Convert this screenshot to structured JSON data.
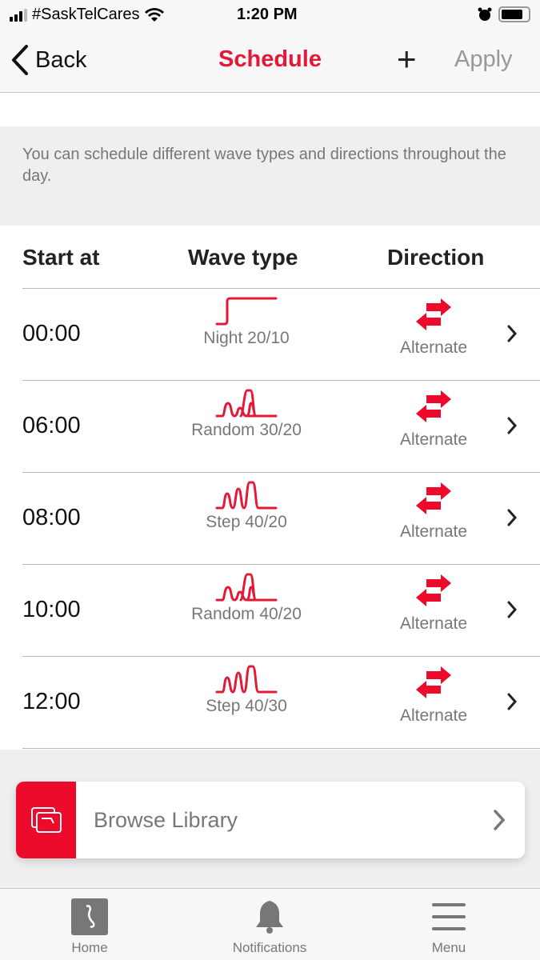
{
  "status_bar": {
    "carrier": "#SaskTelCares",
    "time": "1:20 PM"
  },
  "nav": {
    "back_label": "Back",
    "title": "Schedule",
    "add_label": "+",
    "apply_label": "Apply"
  },
  "info_text": "You can schedule different wave types and directions throughout the day.",
  "table": {
    "headers": [
      "Start at",
      "Wave type",
      "Direction"
    ],
    "rows": [
      {
        "start": "00:00",
        "wave": "Night 20/10",
        "wave_icon": "night-wave-icon",
        "direction": "Alternate"
      },
      {
        "start": "06:00",
        "wave": "Random 30/20",
        "wave_icon": "random-wave-icon",
        "direction": "Alternate"
      },
      {
        "start": "08:00",
        "wave": "Step 40/20",
        "wave_icon": "step-wave-icon",
        "direction": "Alternate"
      },
      {
        "start": "10:00",
        "wave": "Random 40/20",
        "wave_icon": "random-wave-icon",
        "direction": "Alternate"
      },
      {
        "start": "12:00",
        "wave": "Step 40/30",
        "wave_icon": "step-wave-icon",
        "direction": "Alternate"
      }
    ]
  },
  "browse_library": {
    "label": "Browse Library"
  },
  "tabbar": {
    "items": [
      {
        "label": "Home"
      },
      {
        "label": "Notifications"
      },
      {
        "label": "Menu"
      }
    ]
  },
  "colors": {
    "accent": "#e31937",
    "library_red": "#ee0a2b"
  }
}
